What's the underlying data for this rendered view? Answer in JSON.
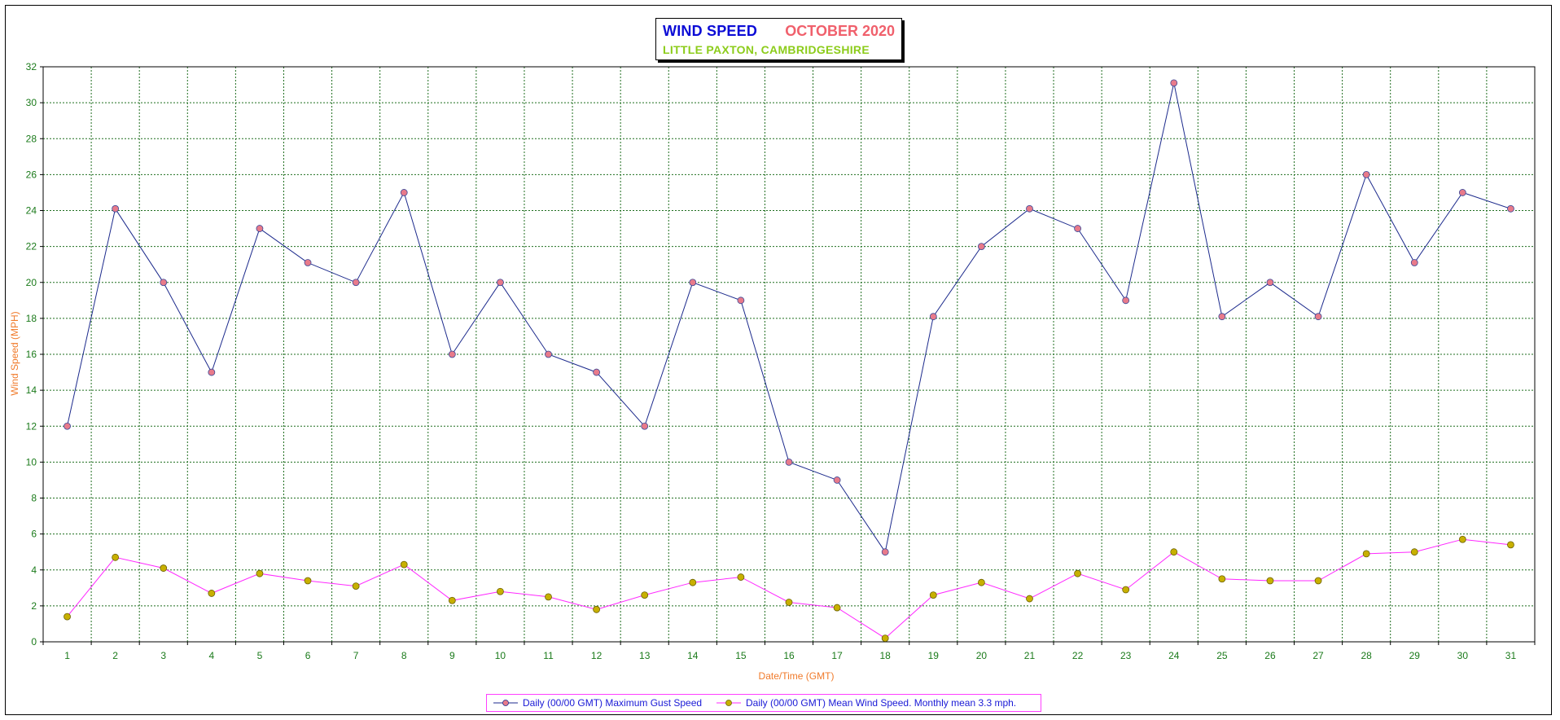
{
  "title": {
    "main": "WIND SPEED",
    "period": "OCTOBER 2020",
    "place": "LITTLE PAXTON, CAMBRIDGESHIRE"
  },
  "colors": {
    "title_main": "#0b0bd6",
    "title_period": "#f0606c",
    "title_place": "#8ccc1a",
    "axis_labels": "#f07a2a",
    "tick_labels": "#1a7a1a",
    "grid": "#1f6e1f",
    "gust_line": "#1c2a8c",
    "gust_marker": "#e87a8a",
    "mean_line": "#ff28ff",
    "mean_marker": "#c8b000",
    "legend_text": "#1a1ad6",
    "legend_border": "#ff40ff"
  },
  "chart_data": {
    "type": "line",
    "title": "WIND SPEED OCTOBER 2020",
    "subtitle": "LITTLE PAXTON, CAMBRIDGESHIRE",
    "xlabel": "Date/Time (GMT)",
    "ylabel": "Wind Speed (MPH)",
    "ylim": [
      0,
      32
    ],
    "yticks": [
      0,
      2,
      4,
      6,
      8,
      10,
      12,
      14,
      16,
      18,
      20,
      22,
      24,
      26,
      28,
      30,
      32
    ],
    "x": [
      1,
      2,
      3,
      4,
      5,
      6,
      7,
      8,
      9,
      10,
      11,
      12,
      13,
      14,
      15,
      16,
      17,
      18,
      19,
      20,
      21,
      22,
      23,
      24,
      25,
      26,
      27,
      28,
      29,
      30,
      31
    ],
    "grid": true,
    "legend_position": "bottom",
    "series": [
      {
        "name": "Daily (00/00 GMT) Maximum Gust Speed",
        "values": [
          12,
          24.1,
          20,
          15,
          23,
          21.1,
          20,
          25,
          16,
          20,
          16,
          15,
          12,
          20,
          19,
          10,
          9,
          5,
          18.1,
          22,
          24.1,
          23,
          19,
          31.1,
          18.1,
          20,
          18.1,
          26,
          21.1,
          25,
          24.1
        ]
      },
      {
        "name": "Daily (00/00 GMT) Mean Wind Speed. Monthly mean 3.3 mph.",
        "values": [
          1.4,
          4.7,
          4.1,
          2.7,
          3.8,
          3.4,
          3.1,
          4.3,
          2.3,
          2.8,
          2.5,
          1.8,
          2.6,
          3.3,
          3.6,
          2.2,
          1.9,
          0.2,
          2.6,
          3.3,
          2.4,
          3.8,
          2.9,
          5.0,
          3.5,
          3.4,
          3.4,
          4.9,
          5.0,
          5.7,
          5.4
        ]
      }
    ]
  }
}
